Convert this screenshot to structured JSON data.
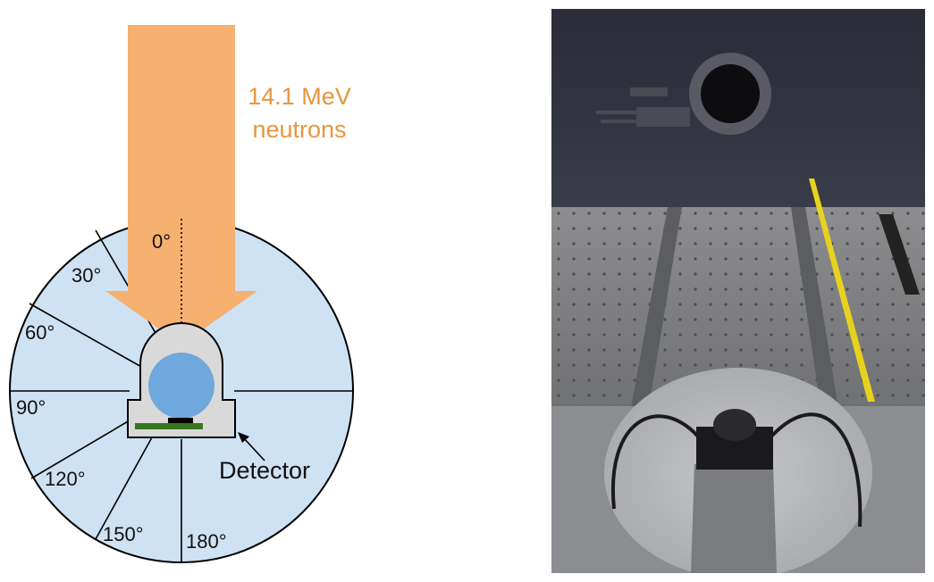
{
  "diagram": {
    "beam_label_line1": "14.1 MeV",
    "beam_label_line2": "neutrons",
    "angles": [
      "0°",
      "30°",
      "60°",
      "90°",
      "120°",
      "150°",
      "180°"
    ],
    "detector_label": "Detector"
  },
  "colors": {
    "beam": "#f6b06f",
    "beam_text": "#e8963c",
    "disk": "#cfe2f3",
    "sphere": "#6fa8dc",
    "housing": "#d9d9d9",
    "pcb": "#38761d"
  }
}
